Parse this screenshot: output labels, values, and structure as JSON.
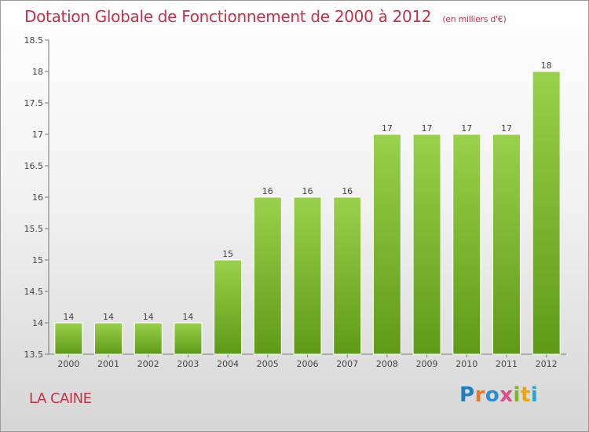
{
  "title": "Dotation Globale de Fonctionnement de 2000 à 2012",
  "subtitle": "(en milliers d'€)",
  "commune": "LA CAINE",
  "brand": {
    "name": "Proxiti",
    "colors": [
      "#1a7fc4",
      "#e9762b",
      "#2a8fd0",
      "#e04a8a",
      "#7fb326",
      "#f0a500",
      "#2aa5c9"
    ]
  },
  "colors": {
    "bar_top": "#9ad14c",
    "bar_bottom": "#5f9a16",
    "title": "#c4314a",
    "axis": "#777777"
  },
  "chart_data": {
    "type": "bar",
    "categories": [
      "2000",
      "2001",
      "2002",
      "2003",
      "2004",
      "2005",
      "2006",
      "2007",
      "2008",
      "2009",
      "2010",
      "2011",
      "2012"
    ],
    "values": [
      14,
      14,
      14,
      14,
      15,
      16,
      16,
      16,
      17,
      17,
      17,
      17,
      18
    ],
    "data_labels": [
      "14",
      "14",
      "14",
      "14",
      "15",
      "16",
      "16",
      "16",
      "17",
      "17",
      "17",
      "17",
      "18"
    ],
    "yticks": [
      "13.5",
      "14",
      "14.5",
      "15",
      "15.5",
      "16",
      "16.5",
      "17",
      "17.5",
      "18",
      "18.5"
    ],
    "ylim": [
      13.5,
      18.5
    ],
    "grid": false,
    "title": "Dotation Globale de Fonctionnement de 2000 à 2012",
    "xlabel": "",
    "ylabel": ""
  }
}
